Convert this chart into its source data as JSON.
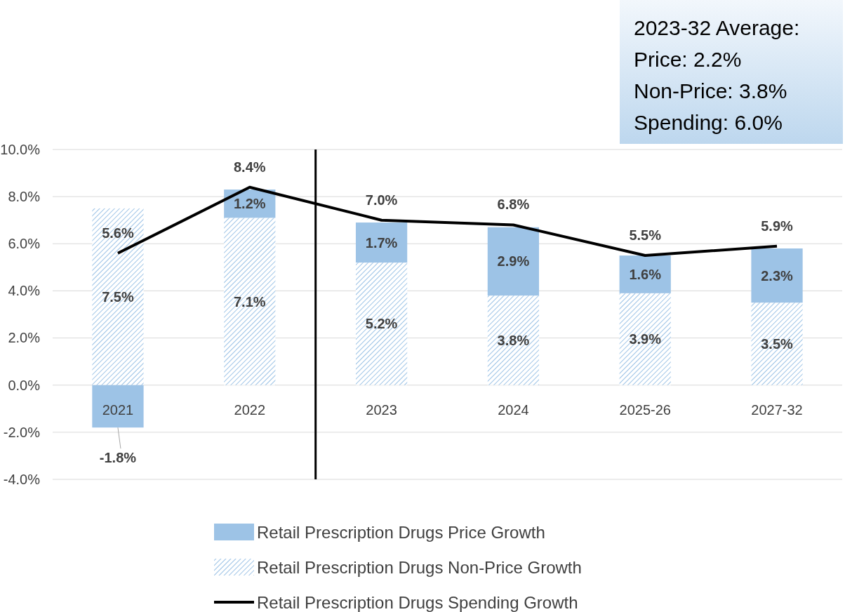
{
  "chart_data": {
    "type": "bar",
    "stacked": true,
    "categories": [
      "2021",
      "2022",
      "2023",
      "2024",
      "2025-26",
      "2027-32"
    ],
    "series": [
      {
        "name": "Retail Prescription Drugs Non-Price Growth",
        "color": "#9dc3e6",
        "values": [
          7.5,
          7.1,
          5.2,
          3.8,
          3.9,
          3.5
        ],
        "value_labels": [
          "7.5%",
          "7.1%",
          "5.2%",
          "3.8%",
          "3.9%",
          "3.5%"
        ]
      },
      {
        "name": "Retail Prescription Drugs Price Growth",
        "color": "#9dc3e6",
        "values": [
          -1.8,
          1.2,
          1.7,
          2.9,
          1.6,
          2.3
        ],
        "value_labels": [
          "-1.8%",
          "1.2%",
          "1.7%",
          "2.9%",
          "1.6%",
          "2.3%"
        ]
      },
      {
        "name": "Retail Prescription Drugs Spending Growth",
        "type": "line",
        "color": "#000000",
        "values": [
          5.6,
          8.4,
          7.0,
          6.8,
          5.5,
          5.9
        ],
        "value_labels": [
          "5.6%",
          "8.4%",
          "7.0%",
          "6.8%",
          "5.5%",
          "5.9%"
        ]
      }
    ],
    "ylim": [
      -4,
      10
    ],
    "yticks": [
      {
        "value": -4,
        "label": "-4.0%"
      },
      {
        "value": -2,
        "label": "-2.0%"
      },
      {
        "value": 0,
        "label": "0.0%"
      },
      {
        "value": 2,
        "label": "2.0%"
      },
      {
        "value": 4,
        "label": "4.0%"
      },
      {
        "value": 6,
        "label": "6.0%"
      },
      {
        "value": 8,
        "label": "8.0%"
      },
      {
        "value": 10,
        "label": "10.0%"
      }
    ],
    "grid": "y",
    "legend": "bottom",
    "annotations": [
      "2023-32 Average:\nPrice: 2.2%\nNon-Price: 3.8%\nSpending: 6.0%"
    ]
  }
}
